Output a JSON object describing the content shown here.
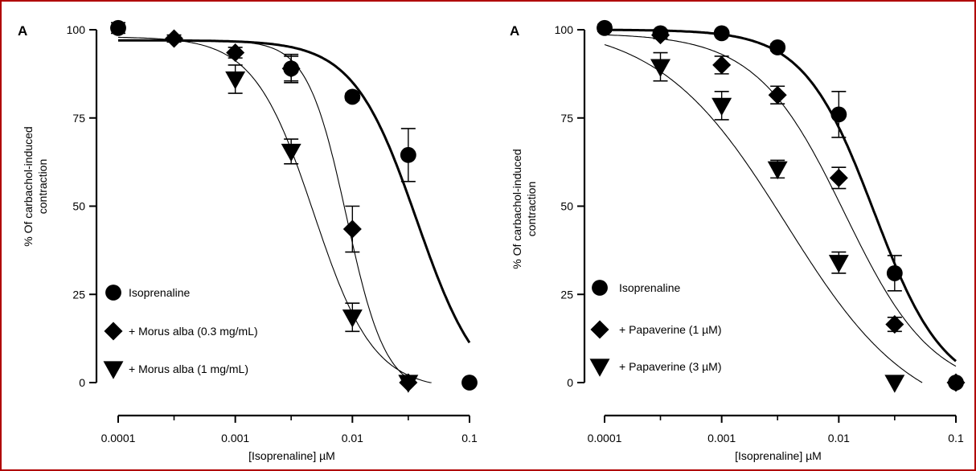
{
  "panel_letter": "A",
  "colors": {
    "border": "#b00000",
    "ink": "#000000"
  },
  "chart_data": [
    {
      "type": "scatter",
      "panel_label": "A",
      "xlabel": "[Isoprenaline] µM",
      "ylabel_line1": "% Of carbachol-induced",
      "ylabel_line2": "contraction",
      "xscale": "log",
      "xlim": [
        0.0001,
        0.1
      ],
      "ylim": [
        0,
        100
      ],
      "xticks": [
        {
          "value": 0.0001,
          "label": "0.0001"
        },
        {
          "value": 0.001,
          "label": "0.001"
        },
        {
          "value": 0.01,
          "label": "0.01"
        },
        {
          "value": 0.1,
          "label": "0.1"
        }
      ],
      "yticks": [
        {
          "value": 0,
          "label": "0"
        },
        {
          "value": 25,
          "label": "25"
        },
        {
          "value": 50,
          "label": "50"
        },
        {
          "value": 75,
          "label": "75"
        },
        {
          "value": 100,
          "label": "100"
        }
      ],
      "legend_position": "bottom-left",
      "series": [
        {
          "name": "Isoprenaline",
          "marker": "circle",
          "line": "thick",
          "points": [
            {
              "x": 0.0001,
              "y": 100.5,
              "err": 1.5
            },
            {
              "x": 0.003,
              "y": 89,
              "err": 3.5
            },
            {
              "x": 0.01,
              "y": 81,
              "err": 1
            },
            {
              "x": 0.03,
              "y": 64.5,
              "err": 7.5
            },
            {
              "x": 0.1,
              "y": 0,
              "err": 0
            }
          ],
          "curve": {
            "top": 97,
            "bottom": -5,
            "logEC50": -1.45,
            "hill": 1.6
          }
        },
        {
          "name": "+ Morus alba (0.3 mg/mL)",
          "marker": "diamond",
          "line": "thin",
          "points": [
            {
              "x": 0.0003,
              "y": 97.5,
              "err": 1
            },
            {
              "x": 0.001,
              "y": 93.5,
              "err": 1.5
            },
            {
              "x": 0.003,
              "y": 89,
              "err": 4
            },
            {
              "x": 0.01,
              "y": 43.5,
              "err": 6.5
            },
            {
              "x": 0.03,
              "y": 0,
              "err": 0
            }
          ],
          "curve": {
            "top": 97,
            "bottom": -3,
            "logEC50": -2.05,
            "hill": 2.6
          }
        },
        {
          "name": "+ Morus alba (1 mg/mL)",
          "marker": "triangle-down",
          "line": "thin",
          "points": [
            {
              "x": 0.001,
              "y": 86,
              "err": 4
            },
            {
              "x": 0.003,
              "y": 65.5,
              "err": 3.5
            },
            {
              "x": 0.01,
              "y": 18.5,
              "err": 4
            },
            {
              "x": 0.03,
              "y": 0,
              "err": 0
            }
          ],
          "curve": {
            "top": 98,
            "bottom": -2,
            "logEC50": -2.33,
            "hill": 1.7
          }
        }
      ]
    },
    {
      "type": "scatter",
      "panel_label": "A",
      "xlabel": "[Isoprenaline] µM",
      "ylabel_line1": "% Of carbachol-induced",
      "ylabel_line2": "contraction",
      "xscale": "log",
      "xlim": [
        0.0001,
        0.1
      ],
      "ylim": [
        0,
        100
      ],
      "xticks": [
        {
          "value": 0.0001,
          "label": "0.0001"
        },
        {
          "value": 0.001,
          "label": "0.001"
        },
        {
          "value": 0.01,
          "label": "0.01"
        },
        {
          "value": 0.1,
          "label": "0.1"
        }
      ],
      "yticks": [
        {
          "value": 0,
          "label": "0"
        },
        {
          "value": 25,
          "label": "25"
        },
        {
          "value": 50,
          "label": "50"
        },
        {
          "value": 75,
          "label": "75"
        },
        {
          "value": 100,
          "label": "100"
        }
      ],
      "legend_position": "bottom-left",
      "series": [
        {
          "name": "Isoprenaline",
          "marker": "circle",
          "line": "thick",
          "points": [
            {
              "x": 0.0001,
              "y": 100.5,
              "err": 1
            },
            {
              "x": 0.0003,
              "y": 99,
              "err": 1
            },
            {
              "x": 0.001,
              "y": 99,
              "err": 0.5
            },
            {
              "x": 0.003,
              "y": 95,
              "err": 1
            },
            {
              "x": 0.01,
              "y": 76,
              "err": 6.5
            },
            {
              "x": 0.03,
              "y": 31,
              "err": 5
            },
            {
              "x": 0.1,
              "y": 0,
              "err": 0
            }
          ],
          "curve": {
            "top": 100,
            "bottom": -3,
            "logEC50": -1.7,
            "hill": 1.45
          }
        },
        {
          "name": "+ Papaverine (1 µM)",
          "marker": "diamond",
          "line": "thin",
          "points": [
            {
              "x": 0.0003,
              "y": 98.5,
              "err": 1
            },
            {
              "x": 0.001,
              "y": 90,
              "err": 2.5
            },
            {
              "x": 0.003,
              "y": 81.5,
              "err": 2.5
            },
            {
              "x": 0.01,
              "y": 58,
              "err": 3
            },
            {
              "x": 0.03,
              "y": 16.5,
              "err": 2
            },
            {
              "x": 0.1,
              "y": 0,
              "err": 0
            }
          ],
          "curve": {
            "top": 99,
            "bottom": -3,
            "logEC50": -1.95,
            "hill": 1.15
          }
        },
        {
          "name": "+ Papaverine (3 µM)",
          "marker": "triangle-down",
          "line": "thin",
          "points": [
            {
              "x": 0.0003,
              "y": 89.5,
              "err": 4
            },
            {
              "x": 0.001,
              "y": 78.5,
              "err": 4
            },
            {
              "x": 0.003,
              "y": 60.5,
              "err": 2.5
            },
            {
              "x": 0.01,
              "y": 34,
              "err": 3
            },
            {
              "x": 0.03,
              "y": 0,
              "err": 0
            }
          ],
          "curve": {
            "top": 102,
            "bottom": -12,
            "logEC50": -2.45,
            "hill": 0.8
          }
        }
      ]
    }
  ]
}
